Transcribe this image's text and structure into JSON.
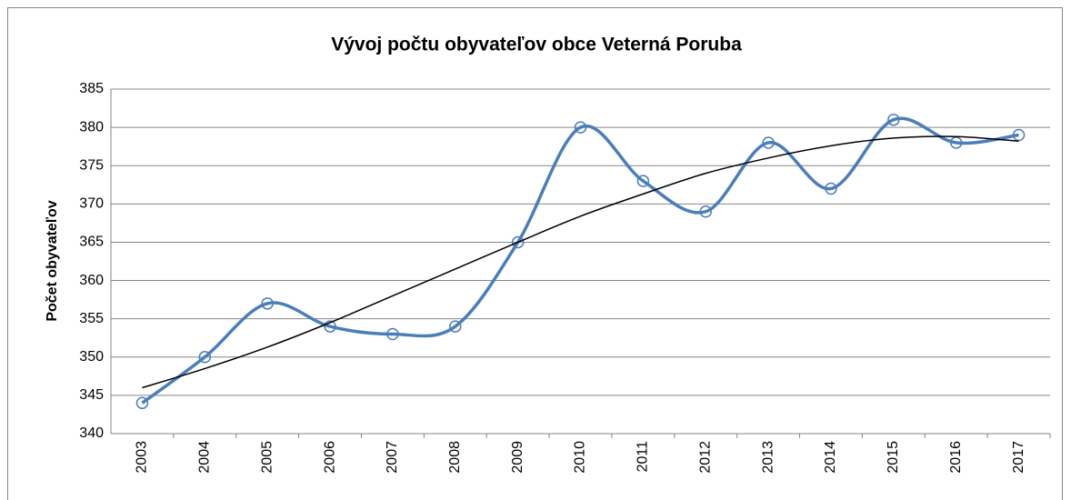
{
  "chart_data": {
    "type": "line",
    "title": "Vývoj počtu obyvateľov obce Veterná Poruba",
    "y_label": "Počet obyvateľov",
    "categories": [
      "2003",
      "2004",
      "2005",
      "2006",
      "2007",
      "2008",
      "2009",
      "2010",
      "2011",
      "2012",
      "2013",
      "2014",
      "2015",
      "2016",
      "2017"
    ],
    "series": [
      {
        "color": "#4a7ebb",
        "smooth": true,
        "marker": true,
        "values": [
          344,
          350,
          357,
          354,
          353,
          354,
          365,
          380,
          373,
          369,
          378,
          372,
          381,
          378,
          379
        ]
      },
      {
        "color": "#000000",
        "smooth": true,
        "marker": false,
        "values": [
          346,
          348.5,
          351.3,
          354.5,
          358,
          361.5,
          365,
          368.4,
          371.3,
          374,
          376,
          377.6,
          378.6,
          378.8,
          378.2
        ]
      }
    ],
    "ylim": [
      340,
      385
    ],
    "yticks": [
      340,
      345,
      350,
      355,
      360,
      365,
      370,
      375,
      380,
      385
    ],
    "grid": true
  }
}
